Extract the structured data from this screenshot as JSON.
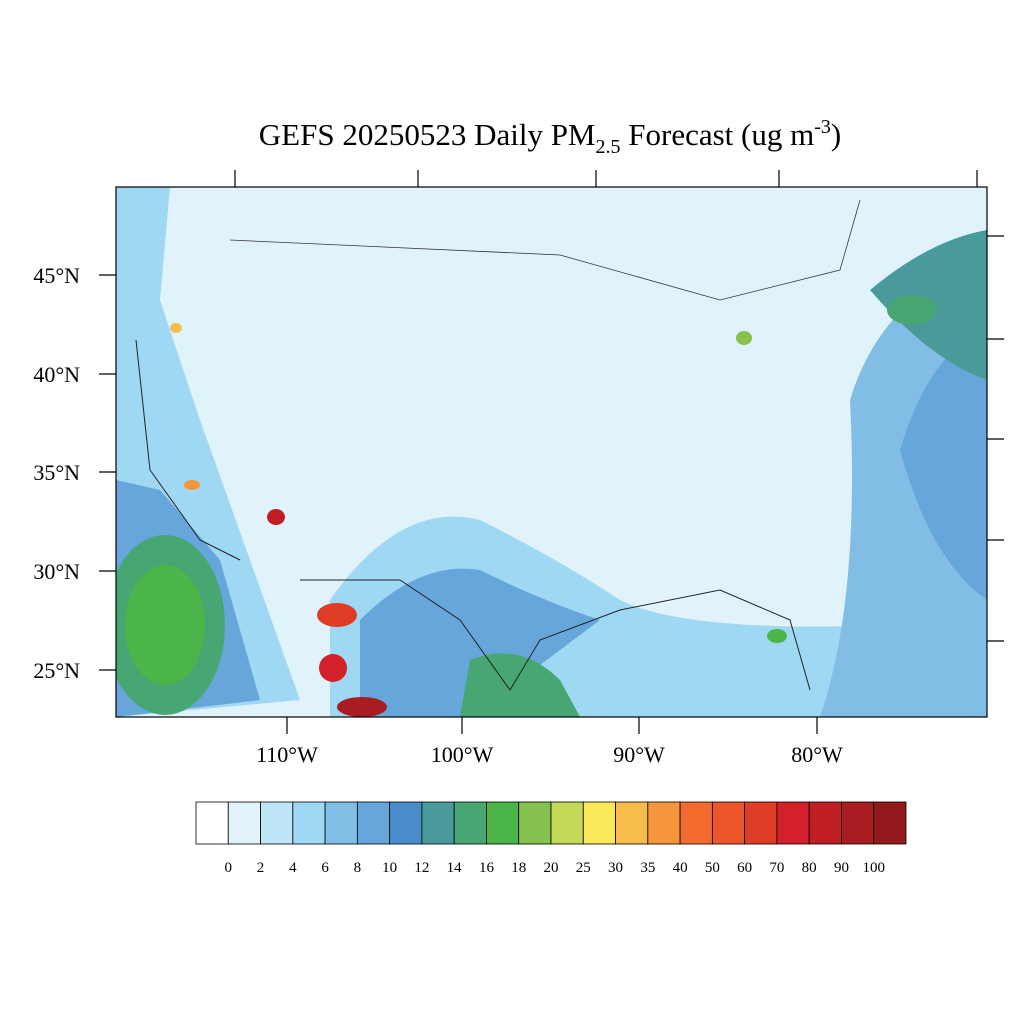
{
  "title": {
    "main": "GEFS 20250523 Daily PM",
    "subscript": "2.5",
    "middle": " Forecast (ug m",
    "superscript": "-3",
    "end": ")"
  },
  "lat_labels": [
    "45°N",
    "40°N",
    "35°N",
    "30°N",
    "25°N"
  ],
  "lon_labels": [
    "110°W",
    "100°W",
    "90°W",
    "80°W"
  ],
  "colorbar": {
    "levels": [
      0,
      2,
      4,
      6,
      8,
      10,
      12,
      14,
      16,
      18,
      20,
      25,
      30,
      35,
      40,
      50,
      60,
      70,
      80,
      90,
      100
    ],
    "colors": [
      "#ffffff",
      "#e0f3fb",
      "#bfe6f7",
      "#9fd8f3",
      "#82bde6",
      "#66a6da",
      "#4a8cc9",
      "#4a9a9c",
      "#48a673",
      "#4cb54a",
      "#86c24d",
      "#c4d957",
      "#f8e85a",
      "#f7bc4a",
      "#f6953c",
      "#f36b2e",
      "#ec5429",
      "#e03b25",
      "#d4202a",
      "#be1e24",
      "#a81c22",
      "#921a1c"
    ]
  }
}
